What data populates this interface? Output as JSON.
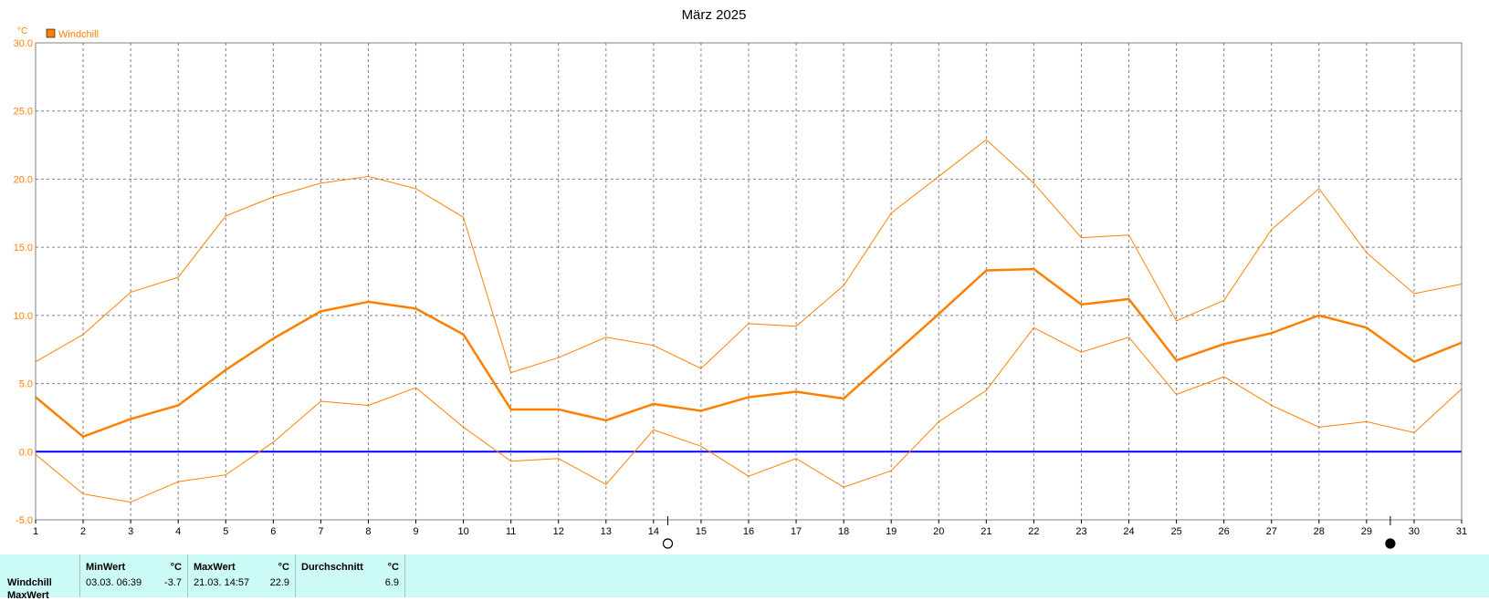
{
  "chart_data": {
    "type": "line",
    "title": "März 2025",
    "yunit": "°C",
    "legend": [
      {
        "name": "Windchill",
        "color": "#ff8000"
      }
    ],
    "x": [
      1,
      2,
      3,
      4,
      5,
      6,
      7,
      8,
      9,
      10,
      11,
      12,
      13,
      14,
      15,
      16,
      17,
      18,
      19,
      20,
      21,
      22,
      23,
      24,
      25,
      26,
      27,
      28,
      29,
      30,
      31
    ],
    "xlim": [
      1,
      31
    ],
    "ylim": [
      -5,
      30
    ],
    "yticks": [
      "30.0",
      "25.0",
      "20.0",
      "15.0",
      "10.0",
      "5.0",
      "0.0",
      "-5.0"
    ],
    "grid": true,
    "zero_line_color": "#0000ff",
    "series": [
      {
        "role": "max",
        "color": "#ff8000",
        "values": [
          6.6,
          8.6,
          11.7,
          12.8,
          17.3,
          18.7,
          19.7,
          20.2,
          19.3,
          17.2,
          5.8,
          6.9,
          8.4,
          7.8,
          6.1,
          9.4,
          9.2,
          12.2,
          17.5,
          20.2,
          22.9,
          19.7,
          15.7,
          15.9,
          9.6,
          11.1,
          16.3,
          19.3,
          14.6,
          11.6,
          12.3
        ]
      },
      {
        "role": "avg",
        "color": "#ff8000",
        "values": [
          4.0,
          1.1,
          2.4,
          3.4,
          6.0,
          8.3,
          10.3,
          11.0,
          10.5,
          8.6,
          3.1,
          3.1,
          2.3,
          3.5,
          3.0,
          4.0,
          4.4,
          3.9,
          7.0,
          10.1,
          13.3,
          13.4,
          10.8,
          11.2,
          6.7,
          7.9,
          8.7,
          10.0,
          9.1,
          6.6,
          8.0
        ]
      },
      {
        "role": "min",
        "color": "#ff8000",
        "values": [
          -0.2,
          -3.1,
          -3.7,
          -2.2,
          -1.7,
          0.7,
          3.7,
          3.4,
          4.7,
          1.8,
          -0.7,
          -0.5,
          -2.4,
          1.6,
          0.4,
          -1.8,
          -0.5,
          -2.6,
          -1.4,
          2.2,
          4.5,
          9.1,
          7.3,
          8.4,
          4.2,
          5.5,
          3.4,
          1.8,
          2.2,
          1.4,
          4.6
        ]
      }
    ],
    "moon_markers": [
      {
        "x": 14.3,
        "phase": "full"
      },
      {
        "x": 29.5,
        "phase": "new"
      }
    ]
  },
  "stats": {
    "row_label_1": "Windchill",
    "row_label_2": "MaxWert",
    "min": {
      "header": "MinWert",
      "unit": "°C",
      "date": "03.03.  06:39",
      "value": "-3.7"
    },
    "max": {
      "header": "MaxWert",
      "unit": "°C",
      "date": "21.03.  14:57",
      "value": "22.9"
    },
    "avg": {
      "header": "Durchschnitt",
      "unit": "°C",
      "value": "6.9"
    }
  }
}
